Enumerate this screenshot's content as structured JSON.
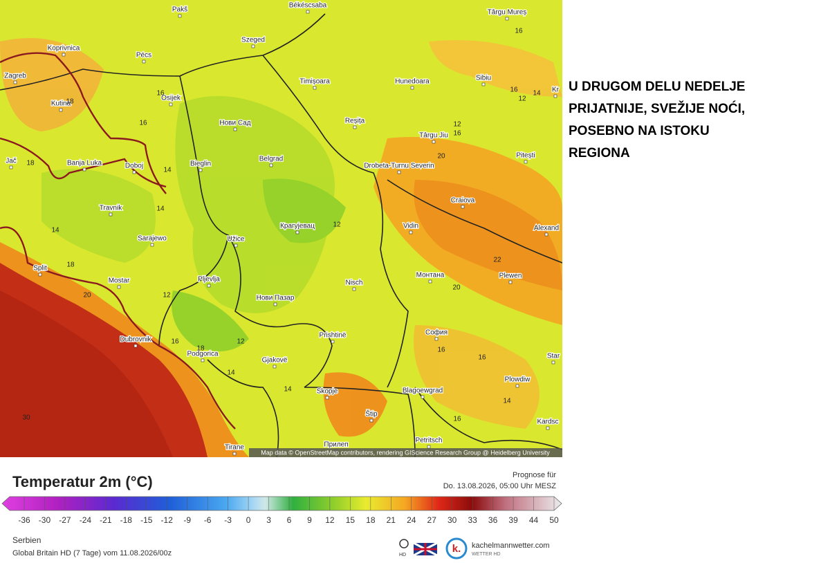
{
  "headline": {
    "lines": [
      "U DRUGOM DELU NEDELJE",
      "PRIJATNIJE, SVEŽIJE NOĆI,",
      "POSEBNO NA ISTOKU",
      "REGIONA"
    ]
  },
  "map": {
    "cities": [
      "Pakš",
      "Békéscsaba",
      "Târgu Mureș",
      "Koprivnica",
      "Pécs",
      "Szeged",
      "Zagreb",
      "Osijek",
      "Timișoara",
      "Hunedoara",
      "Sibiu",
      "Kutina",
      "Нови Сад",
      "Reșița",
      "Târgu Jiu",
      "Pitești",
      "Jač",
      "Banja Luka",
      "Doboj",
      "Bieglin",
      "Belgrad",
      "Drobeta-Turnu Severin",
      "Craiova",
      "Travnik",
      "Крагујевац",
      "Vidin",
      "Alexand",
      "Sarajewo",
      "Užice",
      "Split",
      "Mostar",
      "Pljevlja",
      "Нови Пазар",
      "Nisch",
      "Монтана",
      "Plewen",
      "Dubrovnik",
      "Prishtinë",
      "София",
      "Podgorica",
      "Gjakovë",
      "Plowdiw",
      "Skopje",
      "Štip",
      "Blagoewgrad",
      "Kardsc",
      "Tirane",
      "Прилеп",
      "Petritsch",
      "Star",
      "Kr"
    ],
    "isotherm_labels": [
      16,
      16,
      18,
      16,
      14,
      12,
      16,
      12,
      16,
      18,
      14,
      20,
      14,
      14,
      12,
      18,
      22,
      20,
      20,
      12,
      16,
      18,
      12,
      16,
      16,
      14,
      14,
      14,
      16,
      30
    ],
    "attribution": "Map data © OpenStreetMap contributors, rendering GIScience Research Group @ Heidelberg University"
  },
  "legend": {
    "title": "Temperatur 2m (°C)",
    "scale": [
      -36,
      -30,
      -27,
      -24,
      -21,
      -18,
      -15,
      -12,
      -9,
      -6,
      -3,
      0,
      3,
      6,
      9,
      12,
      15,
      18,
      21,
      24,
      27,
      30,
      33,
      36,
      39,
      44,
      50
    ]
  },
  "forecast": {
    "label": "Prognose für",
    "valid": "Do. 13.08.2026, 05:00 Uhr MESZ"
  },
  "footer": {
    "region": "Serbien",
    "model": "Global Britain HD (7 Tage) vom 11.08.2026/00z",
    "hd": "HD",
    "logo": "kachelmannwetter.com",
    "logo_sub": "WETTER HD"
  }
}
